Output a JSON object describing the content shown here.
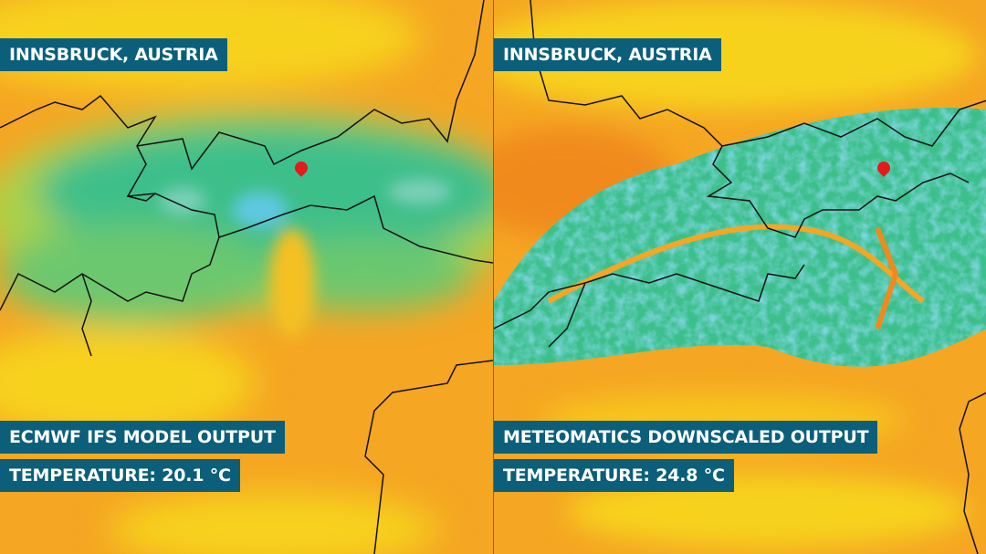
{
  "panels": [
    {
      "location": "INNSBRUCK, AUSTRIA",
      "source": "ECMWF IFS MODEL OUTPUT",
      "temperature": "TEMPERATURE: 20.1 °C"
    },
    {
      "location": "INNSBRUCK, AUSTRIA",
      "source": "METEOMATICS DOWNSCALED OUTPUT",
      "temperature": "TEMPERATURE: 24.8 °C"
    }
  ],
  "colors": {
    "label_bg": "#0b5f7a",
    "warm": "#f5a623",
    "mild": "#f7d21a",
    "cool": "#3cbf8a",
    "cold": "#5ec8e0",
    "marker": "#e21b1b"
  },
  "icons": [
    "location-pin-icon"
  ]
}
